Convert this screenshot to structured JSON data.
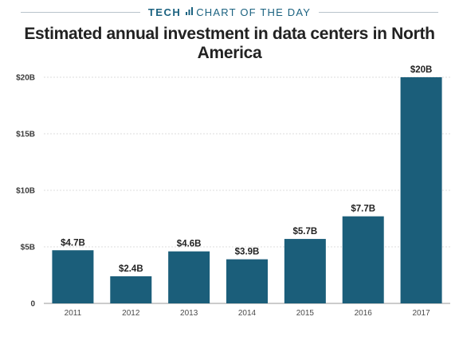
{
  "header": {
    "section": "TECH",
    "label": "CHART OF THE DAY",
    "icon": "bar-chart-icon",
    "accent_color": "#1b6280"
  },
  "chart_data": {
    "type": "bar",
    "title": "Estimated annual investment in data centers in North America",
    "categories": [
      "2011",
      "2012",
      "2013",
      "2014",
      "2015",
      "2016",
      "2017"
    ],
    "values": [
      4.7,
      2.4,
      4.6,
      3.9,
      5.7,
      7.7,
      20
    ],
    "data_labels": [
      "$4.7B",
      "$2.4B",
      "$4.6B",
      "$3.9B",
      "$5.7B",
      "$7.7B",
      "$20B"
    ],
    "yticks": [
      0,
      5,
      10,
      15,
      20
    ],
    "ytick_labels": [
      "0",
      "$5B",
      "$10B",
      "$15B",
      "$20B"
    ],
    "ylim": [
      0,
      20
    ],
    "xlabel": "",
    "ylabel": "",
    "grid": true,
    "bar_color": "#1b5e7a",
    "grid_color": "#dddddd"
  }
}
